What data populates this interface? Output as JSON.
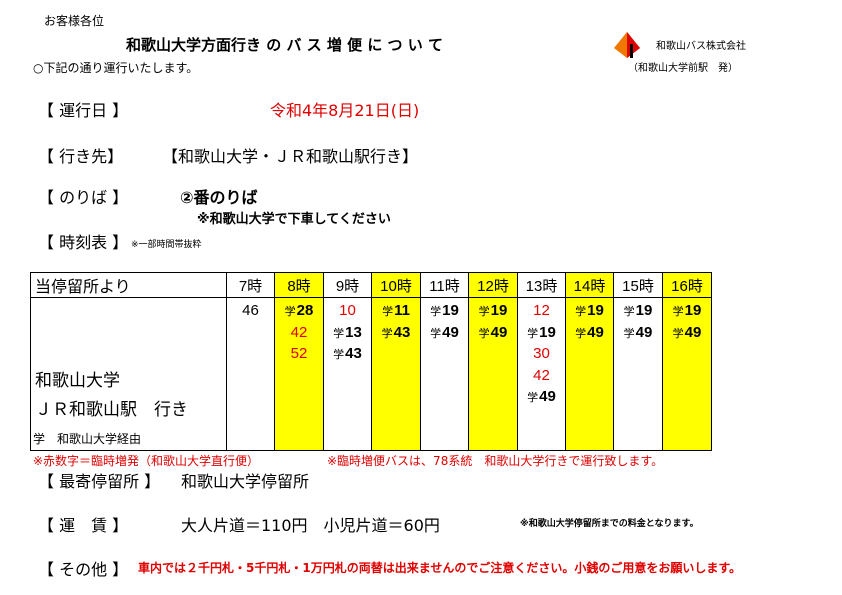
{
  "header": {
    "customer": "お客様各位",
    "title": "和歌山大学方面行き の バ ス 増 便 に つ い て",
    "notice": "○下記の通り運行いたします。",
    "company": "和歌山バス株式会社",
    "station": "（和歌山大学前駅　発）"
  },
  "colors": {
    "accent_red": "#e00000",
    "highlight": "#ffff00",
    "logo_orange": "#f07800"
  },
  "icons": {
    "logo": "company-logo-icon"
  },
  "service_day": {
    "label": "【 運行日 】",
    "value": "令和4年8月21日(日)"
  },
  "destination": {
    "label": "【 行き先】",
    "value": "【和歌山大学・ＪＲ和歌山駅行き】"
  },
  "platform": {
    "label": "【 のりば 】",
    "value": "②番のりば",
    "note": "※和歌山大学で下車してください"
  },
  "timetable": {
    "label": "【 時刻表 】",
    "note": "※一部時間帯抜粋",
    "from_label": "当停留所より",
    "dest_line1": "和歌山大学",
    "dest_line2": "ＪＲ和歌山駅　行き",
    "hours": [
      {
        "label": "7時",
        "highlight": false,
        "times": [
          {
            "mark": "",
            "min": "46",
            "red": false
          }
        ]
      },
      {
        "label": "8時",
        "highlight": true,
        "times": [
          {
            "mark": "学",
            "min": "28",
            "red": false
          },
          {
            "mark": "",
            "min": "42",
            "red": true
          },
          {
            "mark": "",
            "min": "52",
            "red": true
          }
        ]
      },
      {
        "label": "9時",
        "highlight": false,
        "times": [
          {
            "mark": "",
            "min": "10",
            "red": true
          },
          {
            "mark": "学",
            "min": "13",
            "red": false
          },
          {
            "mark": "学",
            "min": "43",
            "red": false
          }
        ]
      },
      {
        "label": "10時",
        "highlight": true,
        "times": [
          {
            "mark": "学",
            "min": "11",
            "red": false
          },
          {
            "mark": "学",
            "min": "43",
            "red": false
          }
        ]
      },
      {
        "label": "11時",
        "highlight": false,
        "times": [
          {
            "mark": "学",
            "min": "19",
            "red": false
          },
          {
            "mark": "学",
            "min": "49",
            "red": false
          }
        ]
      },
      {
        "label": "12時",
        "highlight": true,
        "times": [
          {
            "mark": "学",
            "min": "19",
            "red": false
          },
          {
            "mark": "学",
            "min": "49",
            "red": false
          }
        ]
      },
      {
        "label": "13時",
        "highlight": false,
        "times": [
          {
            "mark": "",
            "min": "12",
            "red": true
          },
          {
            "mark": "学",
            "min": "19",
            "red": false
          },
          {
            "mark": "",
            "min": "30",
            "red": true
          },
          {
            "mark": "",
            "min": "42",
            "red": true
          },
          {
            "mark": "学",
            "min": "49",
            "red": false
          }
        ]
      },
      {
        "label": "14時",
        "highlight": true,
        "times": [
          {
            "mark": "学",
            "min": "19",
            "red": false
          },
          {
            "mark": "学",
            "min": "49",
            "red": false
          }
        ]
      },
      {
        "label": "15時",
        "highlight": false,
        "times": [
          {
            "mark": "学",
            "min": "19",
            "red": false
          },
          {
            "mark": "学",
            "min": "49",
            "red": false
          }
        ]
      },
      {
        "label": "16時",
        "highlight": true,
        "times": [
          {
            "mark": "学",
            "min": "19",
            "red": false
          },
          {
            "mark": "学",
            "min": "49",
            "red": false
          }
        ]
      }
    ],
    "legend_mark": "学　和歌山大学経由",
    "legend_red": "※赤数字＝臨時増発（和歌山大学直行便）",
    "legend_route": "※臨時増便バスは、78系統　和歌山大学行きで運行致します。"
  },
  "nearest_stop": {
    "label": "【 最寄停留所 】",
    "value": "和歌山大学停留所"
  },
  "fare": {
    "label": "【 運　賃 】",
    "value": "大人片道＝110円　小児片道＝60円",
    "note": "※和歌山大学停留所までの料金となります。"
  },
  "other": {
    "label": "【 その他 】",
    "value": "車内では２千円札・5千円札・1万円札の両替は出来ませんのでご注意ください。小銭のご用意をお願いします。"
  }
}
